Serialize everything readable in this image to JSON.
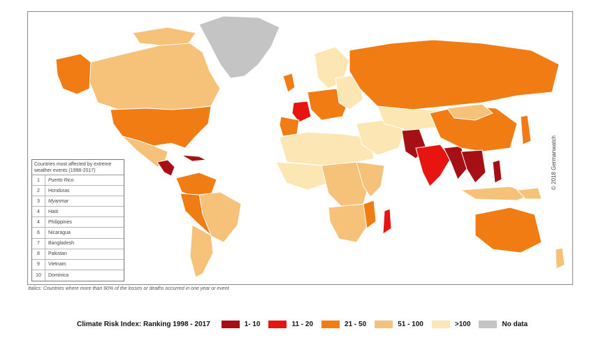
{
  "legend": {
    "title": "Climate Risk Index: Ranking 1998 - 2017",
    "items": [
      {
        "label": "1- 10",
        "color": "#a50f15"
      },
      {
        "label": "11 - 20",
        "color": "#e8140f"
      },
      {
        "label": "21 - 50",
        "color": "#f27c14"
      },
      {
        "label": "51 - 100",
        "color": "#f6c27a"
      },
      {
        "label": ">100",
        "color": "#fce7b4"
      },
      {
        "label": "No data",
        "color": "#c4c4c4"
      }
    ]
  },
  "table": {
    "title": "Countries most affected by extreme weather events (1998-2017)",
    "rows": [
      {
        "rank": "1",
        "country": "Puerto Rico",
        "italic": true
      },
      {
        "rank": "2",
        "country": "Honduras",
        "italic": false
      },
      {
        "rank": "3",
        "country": "Myanmar",
        "italic": true
      },
      {
        "rank": "4",
        "country": "Haiti",
        "italic": false
      },
      {
        "rank": "4",
        "country": "Philippines",
        "italic": false
      },
      {
        "rank": "6",
        "country": "Nicaragua",
        "italic": false
      },
      {
        "rank": "7",
        "country": "Bangladesh",
        "italic": false
      },
      {
        "rank": "8",
        "country": "Pakistan",
        "italic": false
      },
      {
        "rank": "9",
        "country": "Vietnam",
        "italic": false
      },
      {
        "rank": "10",
        "country": "Dominica",
        "italic": false
      }
    ]
  },
  "footnote": "Italics: Countries where more than 90% of the losses or deaths occurred in one year or event",
  "copyright": "© 2018 Germanwatch"
}
